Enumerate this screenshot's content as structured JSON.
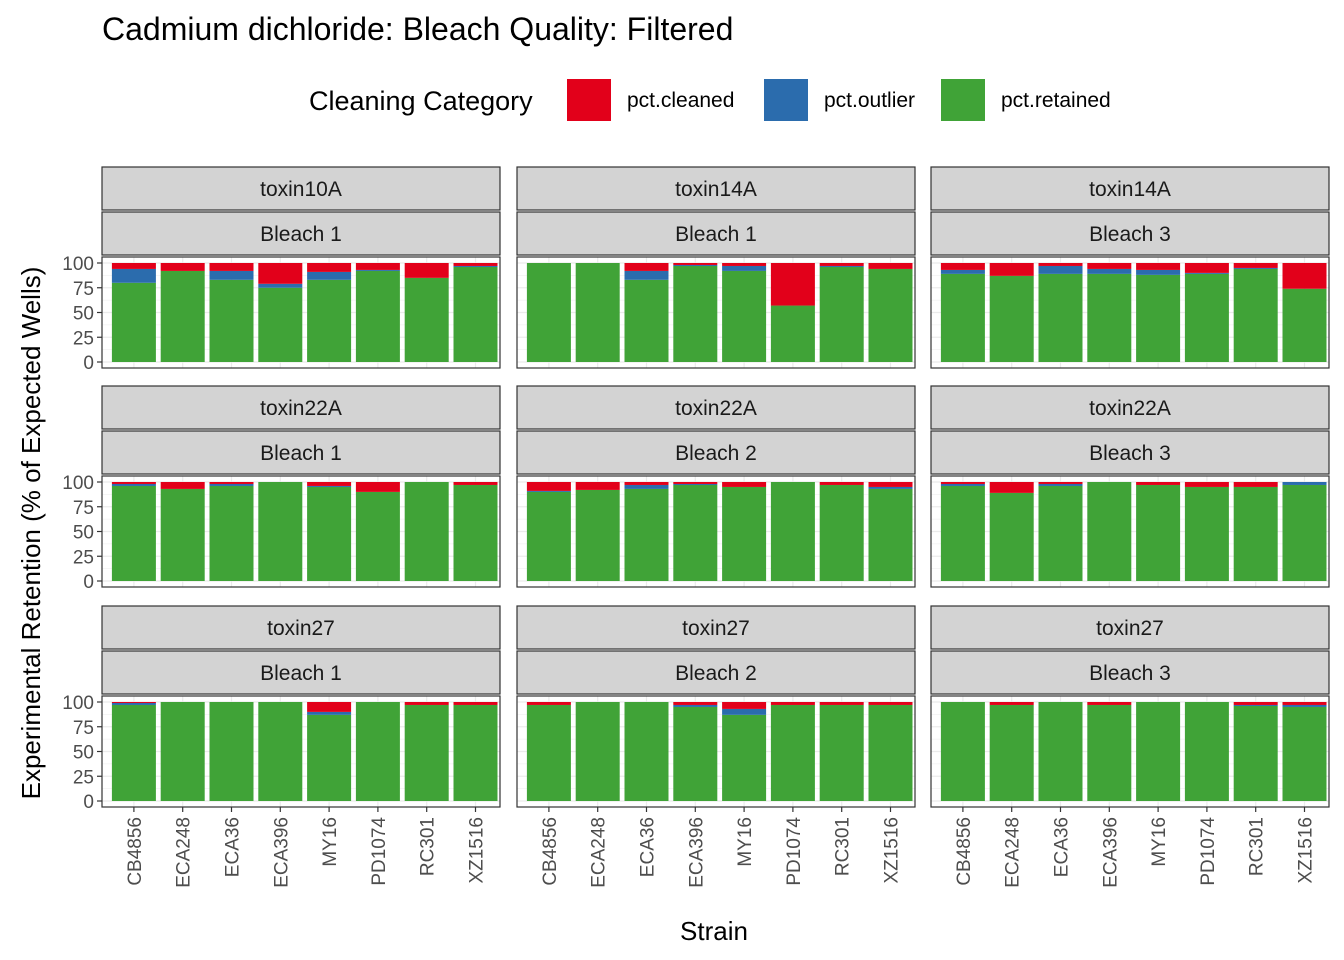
{
  "chart_data": {
    "type": "bar",
    "stacked": true,
    "title": "Cadmium dichloride: Bleach Quality: Filtered",
    "xlabel": "Strain",
    "ylabel": "Experimental Retention (% of Expected Wells)",
    "ylim": [
      0,
      100
    ],
    "yticks": [
      "0",
      "25",
      "50",
      "75",
      "100"
    ],
    "legend": {
      "title": "Cleaning Category",
      "position": "top",
      "items": [
        {
          "key": "cleaned",
          "label": "pct.cleaned",
          "color": "#e2001a"
        },
        {
          "key": "outlier",
          "label": "pct.outlier",
          "color": "#2b6cad"
        },
        {
          "key": "retained",
          "label": "pct.retained",
          "color": "#40a337"
        }
      ]
    },
    "categories": [
      "CB4856",
      "ECA248",
      "ECA36",
      "ECA396",
      "MY16",
      "PD1074",
      "RC301",
      "XZ1516"
    ],
    "panels": [
      {
        "toxin": "toxin10A",
        "bleach": "Bleach 1",
        "retained": [
          80,
          92,
          83,
          75,
          83,
          92,
          85,
          96
        ],
        "outlier": [
          14,
          0,
          9,
          4,
          8,
          1,
          0,
          1
        ],
        "cleaned": [
          6,
          8,
          8,
          21,
          9,
          7,
          15,
          3
        ]
      },
      {
        "toxin": "toxin14A",
        "bleach": "Bleach 1",
        "retained": [
          100,
          100,
          83,
          97,
          92,
          57,
          96,
          94
        ],
        "outlier": [
          0,
          0,
          9,
          1,
          5,
          0,
          1,
          0
        ],
        "cleaned": [
          0,
          0,
          8,
          2,
          3,
          43,
          3,
          6
        ]
      },
      {
        "toxin": "toxin14A",
        "bleach": "Bleach 3",
        "retained": [
          89,
          87,
          89,
          89,
          88,
          89,
          94,
          74
        ],
        "outlier": [
          4,
          0,
          8,
          5,
          5,
          1,
          1,
          0
        ],
        "cleaned": [
          7,
          13,
          3,
          6,
          7,
          10,
          5,
          26
        ]
      },
      {
        "toxin": "toxin22A",
        "bleach": "Bleach 1",
        "retained": [
          96,
          93,
          96,
          100,
          95,
          90,
          100,
          97
        ],
        "outlier": [
          2,
          0,
          2,
          0,
          1,
          0,
          0,
          0
        ],
        "cleaned": [
          2,
          7,
          2,
          0,
          4,
          10,
          0,
          3
        ]
      },
      {
        "toxin": "toxin22A",
        "bleach": "Bleach 2",
        "retained": [
          90,
          92,
          93,
          97,
          95,
          100,
          97,
          93
        ],
        "outlier": [
          1,
          0,
          4,
          1,
          0,
          0,
          0,
          2
        ],
        "cleaned": [
          9,
          8,
          3,
          2,
          5,
          0,
          3,
          5
        ]
      },
      {
        "toxin": "toxin22A",
        "bleach": "Bleach 3",
        "retained": [
          96,
          89,
          96,
          100,
          97,
          95,
          95,
          97
        ],
        "outlier": [
          2,
          0,
          2,
          0,
          0,
          0,
          0,
          3
        ],
        "cleaned": [
          2,
          11,
          2,
          0,
          3,
          5,
          5,
          0
        ]
      },
      {
        "toxin": "toxin27",
        "bleach": "Bleach 1",
        "retained": [
          97,
          100,
          100,
          100,
          87,
          100,
          97,
          97
        ],
        "outlier": [
          2,
          0,
          0,
          0,
          3,
          0,
          0,
          0
        ],
        "cleaned": [
          1,
          0,
          0,
          0,
          10,
          0,
          3,
          3
        ]
      },
      {
        "toxin": "toxin27",
        "bleach": "Bleach 2",
        "retained": [
          97,
          100,
          100,
          95,
          87,
          97,
          97,
          97
        ],
        "outlier": [
          0,
          0,
          0,
          2,
          6,
          0,
          0,
          0
        ],
        "cleaned": [
          3,
          0,
          0,
          3,
          7,
          3,
          3,
          3
        ]
      },
      {
        "toxin": "toxin27",
        "bleach": "Bleach 3",
        "retained": [
          100,
          97,
          100,
          97,
          100,
          100,
          96,
          95
        ],
        "outlier": [
          0,
          0,
          0,
          0,
          0,
          0,
          1,
          2
        ],
        "cleaned": [
          0,
          3,
          0,
          3,
          0,
          0,
          3,
          3
        ]
      }
    ]
  }
}
